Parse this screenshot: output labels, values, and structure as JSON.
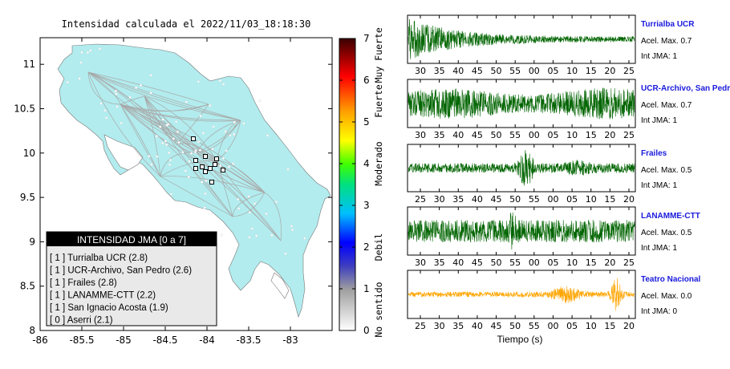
{
  "map": {
    "title": "Intensidad calculada el 2022/11/03_18:18:30",
    "x_ticks": [
      "-86",
      "-85.5",
      "-85",
      "-84.5",
      "-84",
      "-83.5",
      "-83"
    ],
    "y_ticks": [
      "11",
      "10.5",
      "10",
      "9.5",
      "9",
      "8.5",
      "8"
    ],
    "xlim": [
      -86,
      -82.5
    ],
    "ylim": [
      8,
      11.3
    ],
    "land_color": "#b2ecee",
    "legend": {
      "title": "INTENSIDAD JMA [0 a 7]",
      "items": [
        {
          "text": "[ 1 ]  Turrialba UCR (2.8)"
        },
        {
          "text": "[ 1 ]  UCR-Archivo, San Pedro (2.6)"
        },
        {
          "text": "[ 1 ]  Frailes (2.8)"
        },
        {
          "text": "[ 1 ]  LANAMME-CTT (2.2)"
        },
        {
          "text": "[ 1 ]  San Ignacio Acosta (1.9)"
        },
        {
          "text": "[ 0 ]  Aserri (2.1)"
        }
      ]
    }
  },
  "colorbar": {
    "ticks": [
      "0",
      "1",
      "2",
      "3",
      "4",
      "5",
      "6",
      "7"
    ],
    "labels": [
      "No sentido",
      "Debil",
      "Moderado",
      "Fuerte",
      "Muy Fuerte"
    ],
    "range": [
      0,
      7
    ]
  },
  "chart_data": {
    "type": "line",
    "x_axis_label": "Tiempo (s)",
    "traces": [
      {
        "name": "Turrialba UCR",
        "line1": "Acel. Max. 0.7",
        "line2": "Int JMA: 1",
        "color": "#006400",
        "ticks": [
          "30",
          "35",
          "40",
          "45",
          "50",
          "55",
          "00",
          "05",
          "10",
          "15",
          "20",
          "25"
        ],
        "pattern": "decay"
      },
      {
        "name": "UCR-Archivo, San Pedro",
        "line1": "Acel. Max. 0.7",
        "line2": "Int JMA: 1",
        "color": "#006400",
        "ticks": [
          "30",
          "35",
          "40",
          "45",
          "50",
          "55",
          "00",
          "05",
          "10",
          "15",
          "20",
          "25"
        ],
        "pattern": "steady"
      },
      {
        "name": "Frailes",
        "line1": "Acel. Max. 0.5",
        "line2": "Int JMA: 1",
        "color": "#006400",
        "ticks": [
          "25",
          "30",
          "35",
          "40",
          "45",
          "50",
          "55",
          "00",
          "05",
          "10",
          "15",
          "20"
        ],
        "pattern": "mid_burst"
      },
      {
        "name": "LANAMME-CTT",
        "line1": "Acel. Max. 0.5",
        "line2": "Int JMA: 1",
        "color": "#006400",
        "ticks": [
          "30",
          "35",
          "40",
          "45",
          "50",
          "55",
          "00",
          "05",
          "10",
          "15",
          "20",
          "25"
        ],
        "pattern": "spike"
      },
      {
        "name": "Teatro Nacional",
        "line1": "Acel. Max. 0.0",
        "line2": "Int JMA: 0",
        "color": "#ffa500",
        "ticks": [
          "25",
          "30",
          "35",
          "40",
          "45",
          "50",
          "55",
          "00",
          "05",
          "10",
          "15",
          "20"
        ],
        "pattern": "late_burst"
      }
    ]
  }
}
